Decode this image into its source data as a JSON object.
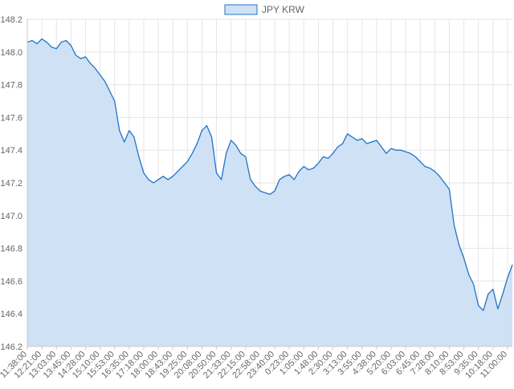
{
  "chart_data": {
    "type": "area",
    "legend": {
      "position": "top",
      "entries": [
        "JPY KRW"
      ]
    },
    "series": [
      {
        "name": "JPY KRW",
        "color": "#1f73c8",
        "fill": "#cfe1f5",
        "points": [
          [
            "11:38:00",
            148.06
          ],
          [
            "11:52:00",
            148.07
          ],
          [
            "12:07:00",
            148.05
          ],
          [
            "12:21:00",
            148.08
          ],
          [
            "12:35:00",
            148.06
          ],
          [
            "12:49:00",
            148.03
          ],
          [
            "13:03:00",
            148.02
          ],
          [
            "13:17:00",
            148.06
          ],
          [
            "13:31:00",
            148.07
          ],
          [
            "13:45:00",
            148.04
          ],
          [
            "14:00:00",
            147.98
          ],
          [
            "14:14:00",
            147.96
          ],
          [
            "14:28:00",
            147.97
          ],
          [
            "14:42:00",
            147.93
          ],
          [
            "14:56:00",
            147.9
          ],
          [
            "15:10:00",
            147.86
          ],
          [
            "15:24:00",
            147.82
          ],
          [
            "15:39:00",
            147.76
          ],
          [
            "15:53:00",
            147.7
          ],
          [
            "16:07:00",
            147.52
          ],
          [
            "16:21:00",
            147.45
          ],
          [
            "16:35:00",
            147.52
          ],
          [
            "16:49:00",
            147.48
          ],
          [
            "17:04:00",
            147.36
          ],
          [
            "17:18:00",
            147.26
          ],
          [
            "17:32:00",
            147.22
          ],
          [
            "17:46:00",
            147.2
          ],
          [
            "18:00:00",
            147.22
          ],
          [
            "18:14:00",
            147.24
          ],
          [
            "18:29:00",
            147.22
          ],
          [
            "18:43:00",
            147.24
          ],
          [
            "18:57:00",
            147.27
          ],
          [
            "19:11:00",
            147.3
          ],
          [
            "19:25:00",
            147.33
          ],
          [
            "19:39:00",
            147.38
          ],
          [
            "19:54:00",
            147.44
          ],
          [
            "20:08:00",
            147.52
          ],
          [
            "20:22:00",
            147.55
          ],
          [
            "20:36:00",
            147.48
          ],
          [
            "20:50:00",
            147.26
          ],
          [
            "21:04:00",
            147.22
          ],
          [
            "21:19:00",
            147.38
          ],
          [
            "21:33:00",
            147.46
          ],
          [
            "21:47:00",
            147.43
          ],
          [
            "22:01:00",
            147.38
          ],
          [
            "22:15:00",
            147.36
          ],
          [
            "22:29:00",
            147.22
          ],
          [
            "22:44:00",
            147.18
          ],
          [
            "22:58:00",
            147.15
          ],
          [
            "23:12:00",
            147.14
          ],
          [
            "23:26:00",
            147.13
          ],
          [
            "23:40:00",
            147.15
          ],
          [
            "23:54:00",
            147.22
          ],
          [
            "0:09:00",
            147.24
          ],
          [
            "0:23:00",
            147.25
          ],
          [
            "0:37:00",
            147.22
          ],
          [
            "0:51:00",
            147.27
          ],
          [
            "1:05:00",
            147.3
          ],
          [
            "1:20:00",
            147.28
          ],
          [
            "1:34:00",
            147.29
          ],
          [
            "1:48:00",
            147.32
          ],
          [
            "2:02:00",
            147.36
          ],
          [
            "2:16:00",
            147.35
          ],
          [
            "2:30:00",
            147.38
          ],
          [
            "2:45:00",
            147.42
          ],
          [
            "2:59:00",
            147.44
          ],
          [
            "3:13:00",
            147.5
          ],
          [
            "3:27:00",
            147.48
          ],
          [
            "3:41:00",
            147.46
          ],
          [
            "3:55:00",
            147.47
          ],
          [
            "4:10:00",
            147.44
          ],
          [
            "4:24:00",
            147.45
          ],
          [
            "4:38:00",
            147.46
          ],
          [
            "4:52:00",
            147.42
          ],
          [
            "5:06:00",
            147.38
          ],
          [
            "5:20:00",
            147.41
          ],
          [
            "5:35:00",
            147.4
          ],
          [
            "5:49:00",
            147.4
          ],
          [
            "6:03:00",
            147.39
          ],
          [
            "6:17:00",
            147.38
          ],
          [
            "6:31:00",
            147.36
          ],
          [
            "6:45:00",
            147.33
          ],
          [
            "7:00:00",
            147.3
          ],
          [
            "7:14:00",
            147.29
          ],
          [
            "7:28:00",
            147.27
          ],
          [
            "7:42:00",
            147.24
          ],
          [
            "7:56:00",
            147.2
          ],
          [
            "8:10:00",
            147.16
          ],
          [
            "8:25:00",
            146.94
          ],
          [
            "8:39:00",
            146.82
          ],
          [
            "8:53:00",
            146.74
          ],
          [
            "9:07:00",
            146.64
          ],
          [
            "9:21:00",
            146.58
          ],
          [
            "9:35:00",
            146.45
          ],
          [
            "9:50:00",
            146.42
          ],
          [
            "10:04:00",
            146.52
          ],
          [
            "10:18:00",
            146.55
          ],
          [
            "10:32:00",
            146.43
          ],
          [
            "10:46:00",
            146.52
          ],
          [
            "11:00:00",
            146.62
          ],
          [
            "11:15:00",
            146.7
          ]
        ]
      }
    ],
    "x_tick_labels": [
      "11:38:00",
      "12:21:00",
      "13:03:00",
      "13:45:00",
      "14:28:00",
      "15:10:00",
      "15:53:00",
      "16:35:00",
      "17:18:00",
      "18:00:00",
      "18:43:00",
      "19:25:00",
      "20:08:00",
      "20:50:00",
      "21:33:00",
      "22:15:00",
      "22:58:00",
      "23:40:00",
      "0:23:00",
      "1:05:00",
      "1:48:00",
      "2:30:00",
      "3:13:00",
      "3:55:00",
      "4:38:00",
      "5:20:00",
      "6:03:00",
      "6:45:00",
      "7:28:00",
      "8:10:00",
      "8:53:00",
      "9:35:00",
      "10:18:00",
      "11:00:00"
    ],
    "y_ticks": [
      "146.2",
      "146.4",
      "146.6",
      "146.8",
      "147.0",
      "147.2",
      "147.4",
      "147.6",
      "147.8",
      "148.0",
      "148.2"
    ],
    "ylim": [
      146.2,
      148.2
    ],
    "grid": true,
    "title": "",
    "xlabel": "",
    "ylabel": ""
  }
}
